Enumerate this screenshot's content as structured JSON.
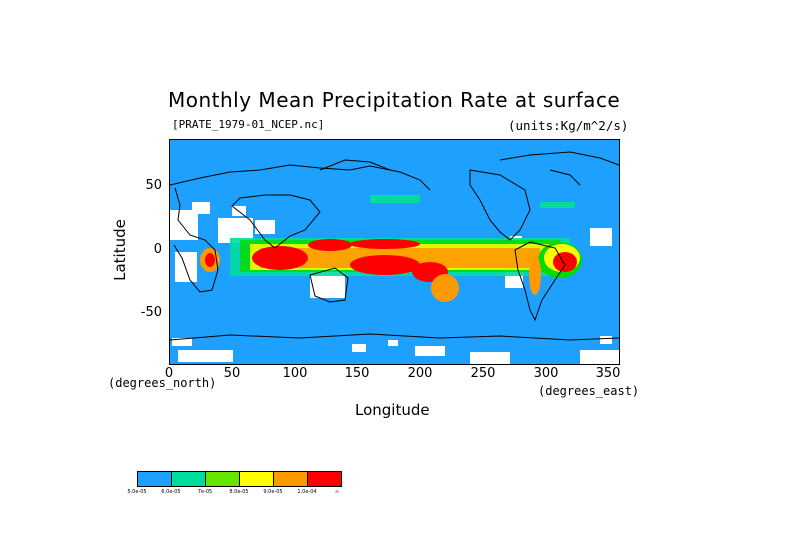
{
  "title": "Monthly Mean Precipitation Rate at surface",
  "source_file": "[PRATE_1979-01_NCEP.nc]",
  "units": "(units:Kg/m^2/s)",
  "axes": {
    "y_label": "Latitude",
    "x_label": "Longitude",
    "x_unit_label": "(degrees_north)",
    "x_unit_label_right": "(degrees_east)",
    "y_ticks": [
      "50",
      "0",
      "-50"
    ],
    "x_ticks": [
      "0",
      "50",
      "100",
      "150",
      "200",
      "250",
      "300",
      "350"
    ],
    "x_range": [
      0,
      357.5
    ],
    "y_range": [
      -90,
      90
    ]
  },
  "colorbar": {
    "colors": [
      "#1ea0ff",
      "#00dca0",
      "#00dc00",
      "#64e600",
      "#ffff00",
      "#ff9900",
      "#ff0000"
    ],
    "labels": [
      "5.0e-05",
      "6.0e-05",
      "7e-05",
      "8.0e-05",
      "9.0e-05",
      "1.0e-04",
      "∞"
    ]
  },
  "map_colors": {
    "ocean_low": "#1ea0ff",
    "no_data": "#ffffff",
    "coast": "#000000"
  }
}
